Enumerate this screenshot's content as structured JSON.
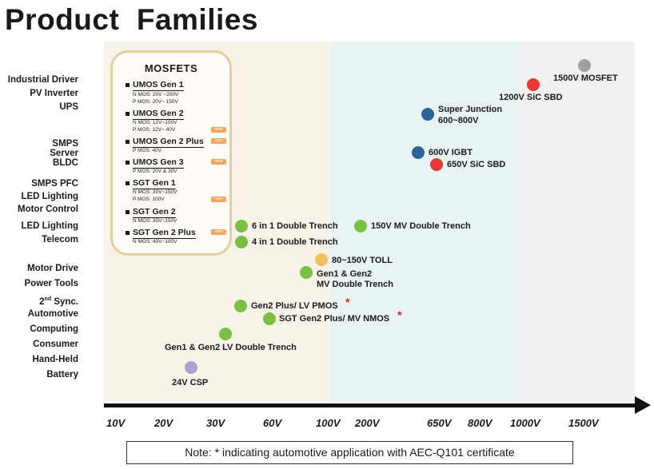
{
  "title": "Product  Families",
  "colors": {
    "zone_low": "#f7f3e8",
    "zone_mid": "#e8f3f3",
    "zone_high": "#f0f0f0",
    "green": "#7ac143",
    "blue": "#2a6496",
    "red": "#e53935",
    "gray": "#a0a0a0",
    "orange": "#f0c060",
    "lavender": "#a9a3cc",
    "new_badge": "#f0a65f",
    "asterisk": "#e22222"
  },
  "applications": [
    "Industrial Driver",
    "PV  Inverter",
    "UPS",
    "SMPS",
    "Server",
    "BLDC",
    "SMPS PFC",
    "LED Lighting",
    "Motor Control",
    "LED Lighting",
    "Telecom",
    "Motor Drive",
    "Power Tools",
    "2",
    "Sync.",
    "Automotive",
    "Computing",
    "Consumer",
    "Hand-Held",
    "Battery"
  ],
  "app_superscript": "nd",
  "mosfets": {
    "title": "MOSFETS",
    "new_label": "new",
    "families": [
      {
        "name": "UMOS Gen 1",
        "specs": [
          "N MOS: 20V ~200V",
          "P MOS: 20V~ 150V"
        ],
        "is_new": false
      },
      {
        "name": "UMOS Gen 2",
        "specs": [
          "N MOS: 12V~100V",
          "P MOS: 12V~ 40V"
        ],
        "is_new": true
      },
      {
        "name": "UMOS Gen 2 Plus",
        "specs": [
          "P MOS: 40V"
        ],
        "is_new": true
      },
      {
        "name": "UMOS Gen 3",
        "specs": [
          "P MOS: 20V & 30V"
        ],
        "is_new": true
      },
      {
        "name": "SGT Gen 1",
        "specs": [
          "N MOS: 30V~150V",
          "P MOS: 100V"
        ],
        "is_new": true
      },
      {
        "name": "SGT Gen 2",
        "specs": [
          "N MOS: 30V~150V"
        ],
        "is_new": false
      },
      {
        "name": "SGT Gen 2 Plus",
        "specs": [
          "N MOS: 40V~100V"
        ],
        "is_new": true
      }
    ]
  },
  "products": [
    {
      "label": "1500V MOSFET",
      "color": "gray"
    },
    {
      "label": "1200V SiC SBD",
      "color": "red"
    },
    {
      "label": "Super Junction",
      "label2": "600~800V",
      "color": "blue"
    },
    {
      "label": "600V IGBT",
      "color": "blue"
    },
    {
      "label": "650V SiC SBD",
      "color": "red"
    },
    {
      "label": "6 in 1 Double Trench",
      "color": "green"
    },
    {
      "label": "150V MV  Double Trench",
      "color": "green"
    },
    {
      "label": "4 in 1 Double Trench",
      "color": "green"
    },
    {
      "label": "80~150V TOLL",
      "color": "orange"
    },
    {
      "label": "Gen1 & Gen2",
      "label2": "MV Double Trench",
      "color": "green"
    },
    {
      "label": "Gen2 Plus/ LV PMOS",
      "color": "green",
      "automotive": true
    },
    {
      "label": "SGT Gen2 Plus/ MV NMOS",
      "color": "green",
      "automotive": true
    },
    {
      "label": "Gen1 & Gen2  LV Double Trench",
      "color": "green"
    },
    {
      "label": "24V CSP",
      "color": "lavender"
    }
  ],
  "asterisk": "*",
  "voltage_axis": [
    "10V",
    "20V",
    "30V",
    "60V",
    "100V",
    "200V",
    "650V",
    "800V",
    "1000V",
    "1500V"
  ],
  "note": "Note: * indicating automotive application with AEC-Q101 certificate"
}
